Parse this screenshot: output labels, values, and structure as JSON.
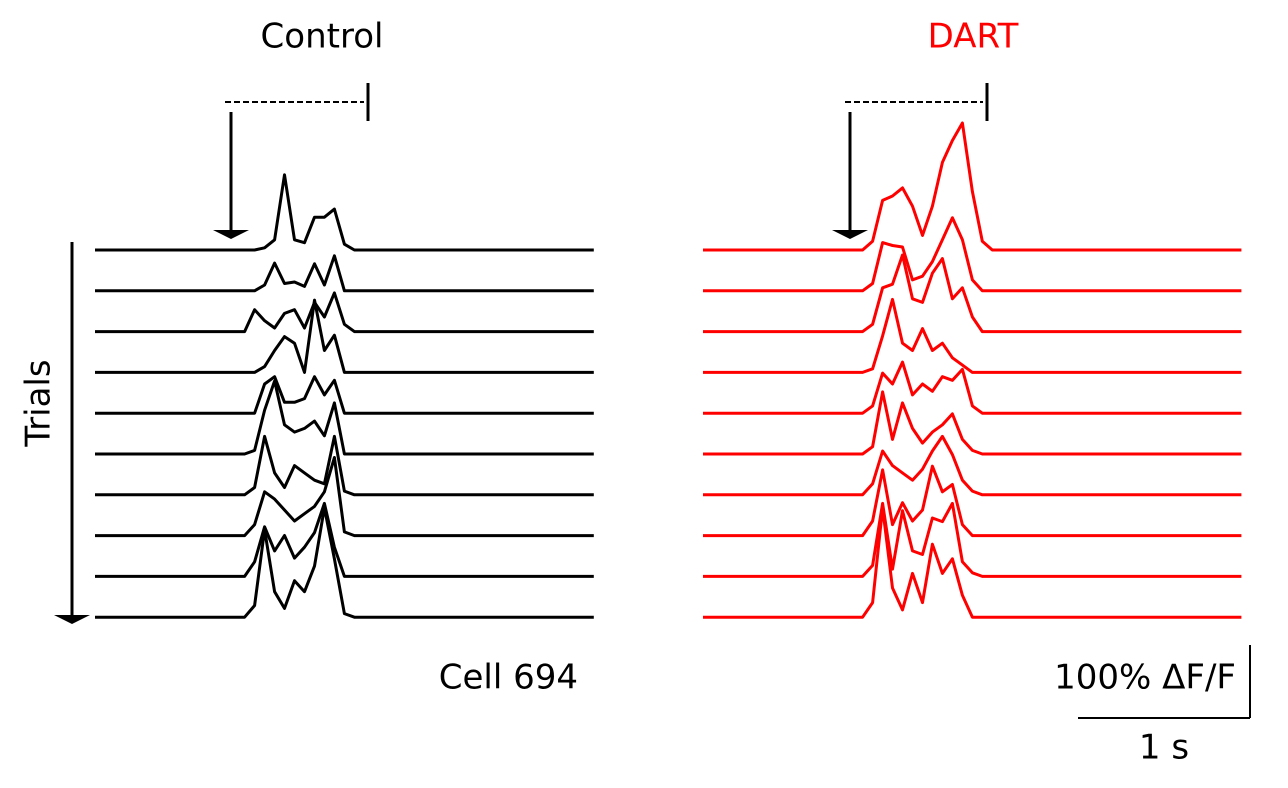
{
  "chart_data": [
    {
      "type": "line",
      "title": "Control",
      "title_color": "#000000",
      "color": "#000000",
      "ylabel": "Trials",
      "annotation": "Cell 694",
      "x": [
        0,
        0.87,
        0.928,
        0.986,
        1.044,
        1.102,
        1.16,
        1.218,
        1.276,
        1.334,
        1.392,
        1.45,
        1.508,
        1.566,
        2.9
      ],
      "xlim": [
        0,
        2.9
      ],
      "series": [
        {
          "values": [
            0,
            0,
            0,
            3,
            14,
            103,
            14,
            10,
            45,
            45,
            56,
            8,
            0,
            0,
            0
          ]
        },
        {
          "values": [
            0,
            0,
            0,
            8,
            38,
            10,
            12,
            6,
            37,
            8,
            48,
            0,
            0,
            0,
            0
          ]
        },
        {
          "values": [
            0,
            0,
            30,
            15,
            5,
            25,
            30,
            5,
            40,
            20,
            53,
            10,
            0,
            0,
            0
          ]
        },
        {
          "values": [
            0,
            0,
            0,
            8,
            30,
            49,
            40,
            0,
            99,
            30,
            51,
            0,
            0,
            0,
            0
          ]
        },
        {
          "values": [
            0,
            0,
            0,
            40,
            50,
            15,
            15,
            20,
            50,
            25,
            45,
            0,
            0,
            0,
            0
          ]
        },
        {
          "values": [
            0,
            0,
            5,
            60,
            100,
            40,
            30,
            35,
            45,
            25,
            70,
            0,
            0,
            0,
            0
          ]
        },
        {
          "values": [
            0,
            0,
            10,
            80,
            30,
            10,
            40,
            30,
            20,
            15,
            80,
            5,
            0,
            0,
            0
          ]
        },
        {
          "values": [
            0,
            0,
            15,
            60,
            50,
            35,
            20,
            30,
            40,
            60,
            107,
            5,
            0,
            0,
            0
          ]
        },
        {
          "values": [
            0,
            0,
            20,
            68,
            35,
            56,
            25,
            40,
            60,
            100,
            40,
            0,
            0,
            0,
            0
          ]
        },
        {
          "values": [
            0,
            0,
            16,
            120,
            35,
            12,
            50,
            35,
            70,
            150,
            80,
            5,
            0,
            0,
            0
          ]
        }
      ]
    },
    {
      "type": "line",
      "title": "DART",
      "title_color": "#ff0000",
      "color": "#ff0000",
      "x": [
        0,
        0.928,
        0.986,
        1.044,
        1.102,
        1.16,
        1.218,
        1.276,
        1.334,
        1.392,
        1.45,
        1.508,
        1.566,
        1.624,
        1.682,
        3.13
      ],
      "xlim": [
        0,
        3.13
      ],
      "scale_bar": {
        "x": 1,
        "x_label": "1 s",
        "y": 100,
        "y_label": "100% ΔF/F"
      },
      "series": [
        {
          "values": [
            0,
            0,
            12,
            68,
            74,
            85,
            60,
            20,
            60,
            120,
            150,
            174,
            80,
            12,
            0,
            0
          ]
        },
        {
          "values": [
            0,
            0,
            10,
            66,
            62,
            60,
            15,
            20,
            40,
            70,
            100,
            70,
            15,
            0,
            0,
            0
          ]
        },
        {
          "values": [
            0,
            0,
            10,
            60,
            65,
            105,
            45,
            40,
            80,
            100,
            45,
            60,
            20,
            0,
            0,
            0
          ]
        },
        {
          "values": [
            0,
            0,
            5,
            50,
            100,
            40,
            30,
            60,
            30,
            40,
            20,
            10,
            0,
            0,
            0,
            0
          ]
        },
        {
          "values": [
            0,
            0,
            10,
            55,
            40,
            70,
            25,
            40,
            30,
            50,
            45,
            60,
            10,
            0,
            0,
            0
          ]
        },
        {
          "values": [
            0,
            0,
            10,
            85,
            20,
            70,
            35,
            15,
            30,
            40,
            55,
            20,
            5,
            0,
            0,
            0
          ]
        },
        {
          "values": [
            0,
            0,
            15,
            60,
            40,
            30,
            20,
            35,
            60,
            80,
            55,
            20,
            5,
            0,
            0,
            0
          ]
        },
        {
          "values": [
            0,
            0,
            20,
            90,
            15,
            45,
            20,
            35,
            95,
            60,
            70,
            15,
            0,
            0,
            0,
            0
          ]
        },
        {
          "values": [
            0,
            0,
            15,
            100,
            10,
            90,
            35,
            30,
            80,
            75,
            100,
            20,
            5,
            0,
            0,
            0
          ]
        },
        {
          "values": [
            0,
            0,
            20,
            150,
            40,
            10,
            60,
            20,
            100,
            60,
            80,
            30,
            0,
            0,
            0,
            0
          ]
        }
      ]
    }
  ]
}
